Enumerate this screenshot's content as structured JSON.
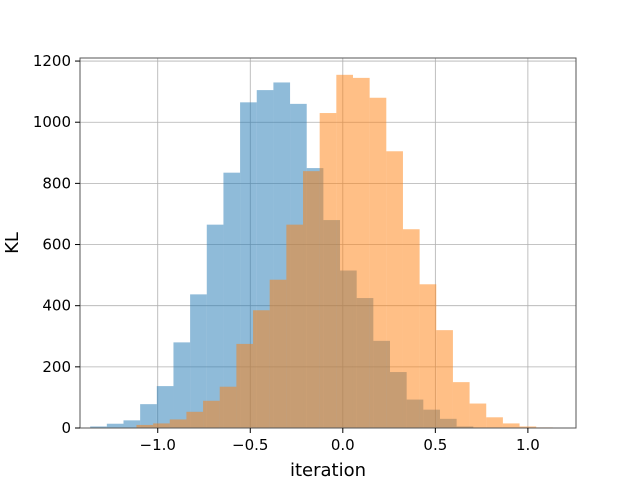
{
  "chart_data": {
    "type": "bar",
    "xlabel": "iteration",
    "ylabel": "KL",
    "xlim": [
      -1.42,
      1.26
    ],
    "ylim": [
      0,
      1210
    ],
    "grid": true,
    "x_ticks": [
      {
        "value": -1.0,
        "label": "−1.0"
      },
      {
        "value": -0.5,
        "label": "−0.5"
      },
      {
        "value": 0.0,
        "label": "0.0"
      },
      {
        "value": 0.5,
        "label": "0.5"
      },
      {
        "value": 1.0,
        "label": "1.0"
      }
    ],
    "y_ticks": [
      {
        "value": 0,
        "label": "0"
      },
      {
        "value": 200,
        "label": "200"
      },
      {
        "value": 400,
        "label": "400"
      },
      {
        "value": 600,
        "label": "600"
      },
      {
        "value": 800,
        "label": "800"
      },
      {
        "value": 1000,
        "label": "1000"
      },
      {
        "value": 1200,
        "label": "1200"
      }
    ],
    "series": [
      {
        "color": "#1f77b4",
        "alpha": 0.5,
        "bin_edges": [
          -1.365,
          -1.275,
          -1.185,
          -1.095,
          -1.005,
          -0.915,
          -0.825,
          -0.735,
          -0.645,
          -0.555,
          -0.465,
          -0.375,
          -0.285,
          -0.195,
          -0.105,
          -0.015,
          0.075,
          0.165,
          0.255,
          0.345,
          0.435,
          0.525,
          0.615,
          0.705
        ],
        "counts": [
          5,
          14,
          25,
          78,
          137,
          280,
          437,
          665,
          835,
          1065,
          1105,
          1130,
          1060,
          850,
          680,
          515,
          425,
          285,
          183,
          93,
          60,
          30,
          5
        ]
      },
      {
        "color": "#ff7f0e",
        "alpha": 0.5,
        "bin_edges": [
          -1.115,
          -1.025,
          -0.935,
          -0.845,
          -0.755,
          -0.665,
          -0.575,
          -0.485,
          -0.395,
          -0.305,
          -0.215,
          -0.125,
          -0.035,
          0.055,
          0.145,
          0.235,
          0.325,
          0.415,
          0.505,
          0.595,
          0.685,
          0.775,
          0.865,
          0.955,
          1.045,
          1.135
        ],
        "counts": [
          10,
          15,
          28,
          53,
          89,
          135,
          275,
          385,
          485,
          665,
          840,
          1030,
          1155,
          1145,
          1080,
          905,
          650,
          470,
          320,
          150,
          80,
          35,
          15,
          5,
          2
        ]
      }
    ]
  }
}
